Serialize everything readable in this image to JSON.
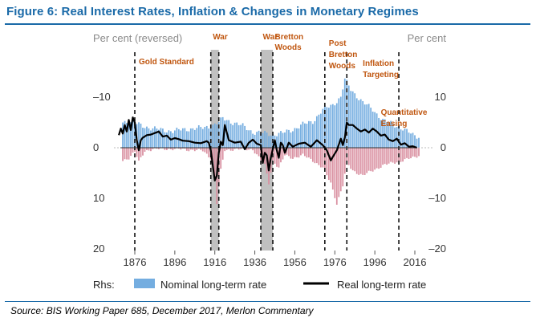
{
  "title": "Figure 6:  Real Interest Rates, Inflation & Changes in Monetary Regimes",
  "source": "Source: BIS Working Paper 685, December 2017, Merlon Commentary",
  "colors": {
    "title": "#1a6aa8",
    "nominal": "#74ade0",
    "nominal_negative": "#d98fa0",
    "real": "#000000",
    "war_shade": "#8c8c8c",
    "annotation": "#c0560f"
  },
  "chart_data": {
    "type": "bar",
    "left_axis_label": "Per cent (reversed)",
    "right_axis_label": "Per cent",
    "left_ticks": [
      "–10",
      "0",
      "10",
      "20"
    ],
    "left_tick_values": [
      -10,
      0,
      10,
      20
    ],
    "right_ticks": [
      "10",
      "0",
      "–10",
      "–20"
    ],
    "right_tick_values": [
      10,
      0,
      -10,
      -20
    ],
    "ylim": [
      20,
      -20
    ],
    "x_ticks": [
      "1876",
      "1896",
      "1916",
      "1936",
      "1956",
      "1976",
      "1996",
      "2016"
    ],
    "x_tick_values": [
      1876,
      1896,
      1916,
      1936,
      1956,
      1976,
      1996,
      2016
    ],
    "xlim": [
      1862,
      2022
    ],
    "legend": {
      "prefix": "Rhs:",
      "nominal": "Nominal long-term rate",
      "real": "Real long-term rate"
    },
    "shaded_periods": [
      [
        1914,
        1918
      ],
      [
        1939,
        1945
      ]
    ],
    "regime_lines": [
      1876,
      1914,
      1918,
      1939,
      1945,
      1971,
      1982,
      2008
    ],
    "annotations": [
      {
        "text": "Gold Standard",
        "year": 1878
      },
      {
        "text": "War",
        "year": 1915
      },
      {
        "text": "War",
        "year": 1940
      },
      {
        "text": "Bretton",
        "year": 1946
      },
      {
        "text": "Woods",
        "year": 1946
      },
      {
        "text": "Post",
        "year": 1973
      },
      {
        "text": "Bretton",
        "year": 1973
      },
      {
        "text": "Woods",
        "year": 1973
      },
      {
        "text": "Inflation",
        "year": 1990
      },
      {
        "text": "Targeting",
        "year": 1990
      },
      {
        "text": "Quantitative",
        "year": 1999
      },
      {
        "text": "Easing",
        "year": 1999
      }
    ],
    "nominal_anchors": [
      [
        1870,
        5.2
      ],
      [
        1875,
        5.0
      ],
      [
        1880,
        4.3
      ],
      [
        1885,
        3.8
      ],
      [
        1890,
        3.5
      ],
      [
        1895,
        3.3
      ],
      [
        1900,
        3.6
      ],
      [
        1905,
        3.8
      ],
      [
        1910,
        3.9
      ],
      [
        1914,
        4.3
      ],
      [
        1918,
        5.0
      ],
      [
        1920,
        5.8
      ],
      [
        1925,
        5.0
      ],
      [
        1930,
        4.3
      ],
      [
        1935,
        3.1
      ],
      [
        1940,
        2.9
      ],
      [
        1945,
        2.6
      ],
      [
        1950,
        2.9
      ],
      [
        1955,
        3.6
      ],
      [
        1960,
        4.6
      ],
      [
        1965,
        5.2
      ],
      [
        1970,
        7.5
      ],
      [
        1975,
        8.5
      ],
      [
        1979,
        10.0
      ],
      [
        1981,
        13.5
      ],
      [
        1984,
        11.5
      ],
      [
        1990,
        9.0
      ],
      [
        1995,
        7.5
      ],
      [
        2000,
        5.5
      ],
      [
        2005,
        4.6
      ],
      [
        2010,
        3.8
      ],
      [
        2015,
        2.5
      ],
      [
        2018,
        2.2
      ]
    ],
    "negative_anchors": [
      [
        1870,
        -2.5
      ],
      [
        1873,
        -2.0
      ],
      [
        1876,
        -0.8
      ],
      [
        1878,
        -2.8
      ],
      [
        1881,
        -0.6
      ],
      [
        1885,
        -0.3
      ],
      [
        1890,
        -0.2
      ],
      [
        1900,
        -0.3
      ],
      [
        1910,
        -0.6
      ],
      [
        1914,
        -2.0
      ],
      [
        1916,
        -6.0
      ],
      [
        1917,
        -11.0
      ],
      [
        1919,
        -4.5
      ],
      [
        1921,
        -0.5
      ],
      [
        1925,
        -0.3
      ],
      [
        1935,
        -0.3
      ],
      [
        1941,
        -3.5
      ],
      [
        1943,
        -7.0
      ],
      [
        1945,
        -2.5
      ],
      [
        1948,
        -4.0
      ],
      [
        1951,
        -1.5
      ],
      [
        1955,
        -2.0
      ],
      [
        1960,
        -1.5
      ],
      [
        1965,
        -2.5
      ],
      [
        1970,
        -4.0
      ],
      [
        1974,
        -7.0
      ],
      [
        1977,
        -11.0
      ],
      [
        1980,
        -7.5
      ],
      [
        1982,
        -3.0
      ],
      [
        1985,
        -4.5
      ],
      [
        1990,
        -5.5
      ],
      [
        1995,
        -4.5
      ],
      [
        2000,
        -3.5
      ],
      [
        2005,
        -3.0
      ],
      [
        2010,
        -2.5
      ],
      [
        2015,
        -2.0
      ],
      [
        2018,
        -1.5
      ]
    ],
    "real_series": [
      [
        1868,
        2.5
      ],
      [
        1869,
        3.8
      ],
      [
        1870,
        2.8
      ],
      [
        1871,
        4.5
      ],
      [
        1872,
        3.2
      ],
      [
        1873,
        5.5
      ],
      [
        1874,
        3.5
      ],
      [
        1875,
        6.0
      ],
      [
        1876,
        5.0
      ],
      [
        1877,
        1.5
      ],
      [
        1878,
        -0.5
      ],
      [
        1879,
        1.5
      ],
      [
        1880,
        2.0
      ],
      [
        1882,
        2.5
      ],
      [
        1884,
        2.6
      ],
      [
        1886,
        2.9
      ],
      [
        1888,
        3.2
      ],
      [
        1890,
        2.2
      ],
      [
        1892,
        2.4
      ],
      [
        1894,
        1.6
      ],
      [
        1896,
        1.9
      ],
      [
        1898,
        1.7
      ],
      [
        1900,
        1.4
      ],
      [
        1903,
        1.3
      ],
      [
        1906,
        1.0
      ],
      [
        1909,
        0.9
      ],
      [
        1912,
        1.3
      ],
      [
        1913,
        1.0
      ],
      [
        1914,
        -0.5
      ],
      [
        1915,
        -3.5
      ],
      [
        1916,
        -6.5
      ],
      [
        1917,
        -5.5
      ],
      [
        1918,
        -1.0
      ],
      [
        1919,
        1.2
      ],
      [
        1920,
        0.5
      ],
      [
        1921,
        4.5
      ],
      [
        1922,
        3.0
      ],
      [
        1923,
        1.5
      ],
      [
        1926,
        1.0
      ],
      [
        1929,
        1.2
      ],
      [
        1931,
        -0.3
      ],
      [
        1933,
        1.0
      ],
      [
        1935,
        1.6
      ],
      [
        1937,
        0.8
      ],
      [
        1939,
        0.5
      ],
      [
        1940,
        -3.0
      ],
      [
        1941,
        -1.0
      ],
      [
        1942,
        -1.5
      ],
      [
        1943,
        -4.5
      ],
      [
        1944,
        -2.0
      ],
      [
        1946,
        1.5
      ],
      [
        1947,
        -0.5
      ],
      [
        1948,
        -2.0
      ],
      [
        1949,
        1.0
      ],
      [
        1950,
        0.5
      ],
      [
        1951,
        -1.0
      ],
      [
        1953,
        1.0
      ],
      [
        1955,
        0.2
      ],
      [
        1958,
        0.8
      ],
      [
        1961,
        1.0
      ],
      [
        1964,
        0.2
      ],
      [
        1967,
        1.5
      ],
      [
        1970,
        0.5
      ],
      [
        1972,
        -0.5
      ],
      [
        1974,
        -2.5
      ],
      [
        1975,
        -1.8
      ],
      [
        1977,
        -0.5
      ],
      [
        1979,
        1.8
      ],
      [
        1980,
        0.5
      ],
      [
        1981,
        2.0
      ],
      [
        1982,
        5.0
      ],
      [
        1983,
        4.5
      ],
      [
        1985,
        4.5
      ],
      [
        1987,
        3.8
      ],
      [
        1989,
        3.2
      ],
      [
        1991,
        3.6
      ],
      [
        1993,
        3.0
      ],
      [
        1995,
        3.8
      ],
      [
        1997,
        3.2
      ],
      [
        1999,
        2.4
      ],
      [
        2001,
        2.6
      ],
      [
        2003,
        1.6
      ],
      [
        2005,
        1.3
      ],
      [
        2007,
        1.8
      ],
      [
        2009,
        0.6
      ],
      [
        2011,
        0.9
      ],
      [
        2013,
        0.2
      ],
      [
        2015,
        0.3
      ],
      [
        2017,
        0.0
      ]
    ]
  }
}
